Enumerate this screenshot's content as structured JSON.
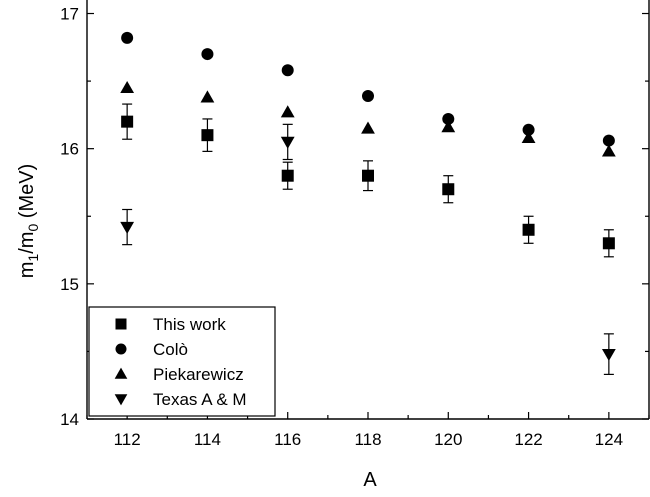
{
  "chart_data": {
    "type": "scatter",
    "xlabel": "A",
    "ylabel_main": "m",
    "ylabel_sub1": "1",
    "ylabel_mid": "/m",
    "ylabel_sub0": "0",
    "ylabel_unit": " (MeV)",
    "xlim": [
      111,
      125
    ],
    "ylim": [
      14,
      17.1
    ],
    "x_ticks": [
      112,
      114,
      116,
      118,
      120,
      122,
      124
    ],
    "y_ticks": [
      14,
      15,
      16,
      17
    ],
    "legend_position": "bottom-left",
    "series": [
      {
        "name": "This work",
        "marker": "square",
        "x": [
          112,
          114,
          116,
          118,
          120,
          122,
          124
        ],
        "y": [
          16.2,
          16.1,
          15.8,
          15.8,
          15.7,
          15.4,
          15.3
        ],
        "err": [
          0.13,
          0.12,
          0.1,
          0.11,
          0.1,
          0.1,
          0.1
        ]
      },
      {
        "name": "Colò",
        "marker": "circle",
        "x": [
          112,
          114,
          116,
          118,
          120,
          122,
          124
        ],
        "y": [
          16.82,
          16.7,
          16.58,
          16.39,
          16.22,
          16.14,
          16.06
        ]
      },
      {
        "name": "Piekarewicz",
        "marker": "triangle-up",
        "x": [
          112,
          114,
          116,
          118,
          120,
          122,
          124
        ],
        "y": [
          16.45,
          16.38,
          16.27,
          16.15,
          16.16,
          16.08,
          15.98
        ]
      },
      {
        "name": "Texas A & M",
        "marker": "triangle-down",
        "x": [
          112,
          116,
          124
        ],
        "y": [
          15.42,
          16.05,
          14.48
        ],
        "err": [
          0.13,
          0.13,
          0.15
        ]
      }
    ]
  }
}
